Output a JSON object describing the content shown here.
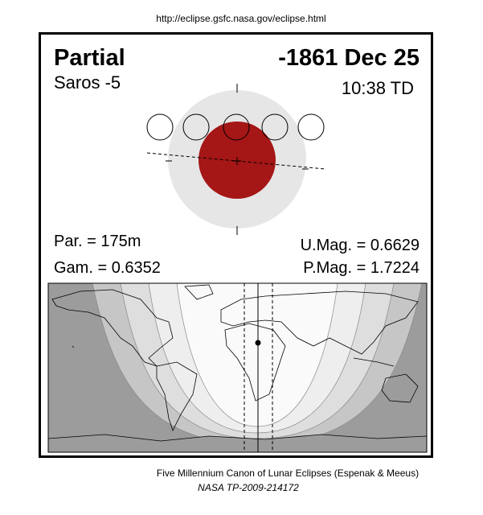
{
  "header": {
    "url": "http://eclipse.gsfc.nasa.gov/eclipse.html"
  },
  "eclipse": {
    "type": "Partial",
    "date": "-1861 Dec 25",
    "saros": "Saros  -5",
    "time": "10:38 TD",
    "parameters": {
      "par": "Par. = 175m",
      "gam": "Gam. = 0.6352",
      "umag": "U.Mag. = 0.6629",
      "pmag": "P.Mag. = 1.7224"
    }
  },
  "footer": {
    "canon": "Five Millennium Canon of Lunar Eclipses (Espenak & Meeus)",
    "reference": "NASA TP-2009-214172"
  }
}
